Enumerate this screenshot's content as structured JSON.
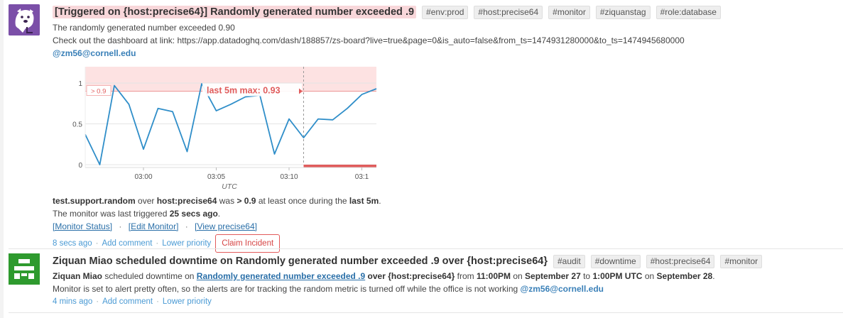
{
  "event1": {
    "title": "[Triggered on {host:precise64}] Randomly generated number exceeded .9",
    "tags": [
      "#env:prod",
      "#host:precise64",
      "#monitor",
      "#ziquanstag",
      "#role:database"
    ],
    "body_line1": "The randomly generated number exceeded 0.90",
    "body_line2": "Check out the dashboard at link: https://app.datadoghq.com/dash/188857/zs-board?live=true&page=0&is_auto=false&from_ts=1474931280000&to_ts=1474945680000",
    "mention": "@zm56@cornell.edu",
    "summary": {
      "metric": "test.support.random",
      "over": "over",
      "host": "host:precise64",
      "was": "was",
      "threshold": "> 0.9",
      "mid": "at least once during the",
      "window": "last 5m",
      "end": "."
    },
    "last_triggered_prefix": "The monitor was last triggered",
    "last_triggered_value": "25 secs ago",
    "last_triggered_end": ".",
    "links": [
      "[Monitor Status]",
      "[Edit Monitor]",
      "[View precise64]"
    ],
    "link_sep": "·",
    "meta": {
      "time": "8 secs ago",
      "add_comment": "Add comment",
      "lower_priority": "Lower priority",
      "claim": "Claim Incident"
    }
  },
  "event2": {
    "title": "Ziquan Miao scheduled downtime on Randomly generated number exceeded .9 over {host:precise64}",
    "tags": [
      "#audit",
      "#downtime",
      "#host:precise64",
      "#monitor"
    ],
    "line1": {
      "user": "Ziquan Miao",
      "text1": "scheduled downtime on",
      "monitor_link": "Randomly generated number exceeded .9",
      "over": "over {host:precise64}",
      "from": "from",
      "start_time": "11:00PM",
      "on1": "on",
      "start_date": "September 27",
      "to": "to",
      "end_time": "1:00PM UTC",
      "on2": "on",
      "end_date": "September 28",
      "end": "."
    },
    "line2": "Monitor is set to alert pretty often, so the alerts are for tracking the random metric is turned off while the office is not working",
    "mention": "@zm56@cornell.edu",
    "meta": {
      "time": "4 mins ago",
      "add_comment": "Add comment",
      "lower_priority": "Lower priority"
    }
  },
  "chart_data": {
    "type": "line",
    "title": "",
    "xlabel": "UTC",
    "ylabel": "",
    "x_ticks": [
      "03:00",
      "03:05",
      "03:10",
      "03:1"
    ],
    "y_ticks": [
      "0",
      "0.5",
      "1"
    ],
    "ylim": [
      0,
      1.2
    ],
    "threshold": 0.9,
    "threshold_label": "> 0.9",
    "max_label": "last 5m max: 0.93",
    "series": [
      {
        "values": [
          0.37,
          0.0,
          0.97,
          0.74,
          0.19,
          0.69,
          0.65,
          0.16,
          0.99,
          0.66,
          0.74,
          0.83,
          0.85,
          0.13,
          0.56,
          0.33,
          0.56,
          0.55,
          0.69,
          0.86,
          0.93
        ]
      }
    ],
    "colors": {
      "line": "#2f8ec9",
      "alert": "#e05c5c",
      "alert_bg": "#fde2e2"
    }
  }
}
